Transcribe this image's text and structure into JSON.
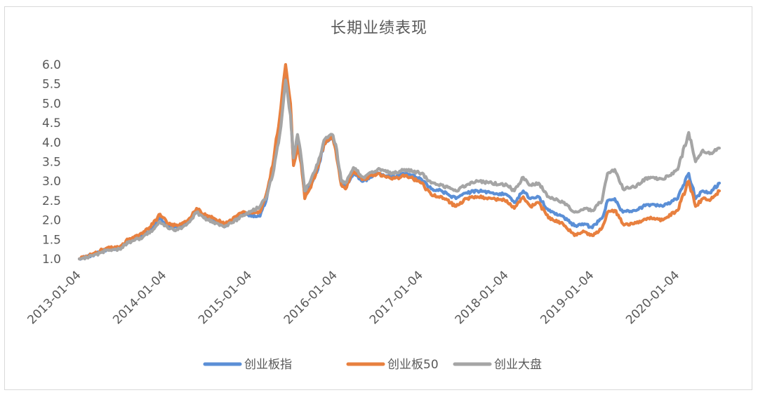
{
  "chart_data": {
    "type": "line",
    "title": "长期业绩表现",
    "xlabel": "",
    "ylabel": "",
    "ylim": [
      1.0,
      6.0
    ],
    "yticks": [
      "1.0",
      "1.5",
      "2.0",
      "2.5",
      "3.0",
      "3.5",
      "4.0",
      "4.5",
      "5.0",
      "5.5",
      "6.0"
    ],
    "xticks": [
      "2013-01-04",
      "2014-01-04",
      "2015-01-04",
      "2016-01-04",
      "2017-01-04",
      "2018-01-04",
      "2019-01-04",
      "2020-01-04"
    ],
    "xlim": [
      "2013-01-04",
      "2020-06-30"
    ],
    "grid": false,
    "legend": "bottom",
    "series": [
      {
        "name": "创业板指",
        "color": "#5b8fd6",
        "points": [
          [
            "2013-01-04",
            1.0
          ],
          [
            "2013-03-01",
            1.1
          ],
          [
            "2013-05-01",
            1.25
          ],
          [
            "2013-06-25",
            1.28
          ],
          [
            "2013-08-01",
            1.45
          ],
          [
            "2013-10-01",
            1.6
          ],
          [
            "2013-11-15",
            1.8
          ],
          [
            "2013-12-15",
            2.05
          ],
          [
            "2014-01-20",
            1.85
          ],
          [
            "2014-03-01",
            1.8
          ],
          [
            "2014-04-20",
            2.0
          ],
          [
            "2014-05-20",
            2.25
          ],
          [
            "2014-06-20",
            2.1
          ],
          [
            "2014-08-01",
            2.0
          ],
          [
            "2014-09-15",
            1.85
          ],
          [
            "2014-10-15",
            1.95
          ],
          [
            "2014-12-01",
            2.15
          ],
          [
            "2015-01-04",
            2.12
          ],
          [
            "2015-02-15",
            2.1
          ],
          [
            "2015-03-15",
            2.55
          ],
          [
            "2015-04-15",
            3.4
          ],
          [
            "2015-05-15",
            4.6
          ],
          [
            "2015-06-04",
            5.8
          ],
          [
            "2015-06-25",
            4.8
          ],
          [
            "2015-07-08",
            3.5
          ],
          [
            "2015-07-25",
            4.0
          ],
          [
            "2015-08-10",
            3.5
          ],
          [
            "2015-08-25",
            2.65
          ],
          [
            "2015-09-15",
            2.85
          ],
          [
            "2015-10-20",
            3.3
          ],
          [
            "2015-11-15",
            3.95
          ],
          [
            "2015-12-20",
            4.15
          ],
          [
            "2016-01-04",
            3.9
          ],
          [
            "2016-01-28",
            2.95
          ],
          [
            "2016-02-15",
            2.85
          ],
          [
            "2016-03-20",
            3.2
          ],
          [
            "2016-05-01",
            3.0
          ],
          [
            "2016-07-01",
            3.2
          ],
          [
            "2016-09-01",
            3.1
          ],
          [
            "2016-11-01",
            3.2
          ],
          [
            "2017-01-04",
            3.05
          ],
          [
            "2017-02-15",
            2.8
          ],
          [
            "2017-04-01",
            2.75
          ],
          [
            "2017-06-01",
            2.55
          ],
          [
            "2017-07-15",
            2.7
          ],
          [
            "2017-09-01",
            2.75
          ],
          [
            "2017-11-01",
            2.7
          ],
          [
            "2018-01-04",
            2.65
          ],
          [
            "2018-02-05",
            2.45
          ],
          [
            "2018-03-15",
            2.75
          ],
          [
            "2018-04-15",
            2.55
          ],
          [
            "2018-05-20",
            2.6
          ],
          [
            "2018-07-01",
            2.25
          ],
          [
            "2018-09-01",
            2.1
          ],
          [
            "2018-10-20",
            1.85
          ],
          [
            "2018-12-01",
            1.9
          ],
          [
            "2019-01-04",
            1.8
          ],
          [
            "2019-02-15",
            2.05
          ],
          [
            "2019-03-10",
            2.5
          ],
          [
            "2019-04-10",
            2.55
          ],
          [
            "2019-05-15",
            2.2
          ],
          [
            "2019-07-01",
            2.25
          ],
          [
            "2019-09-01",
            2.4
          ],
          [
            "2019-11-01",
            2.35
          ],
          [
            "2020-01-04",
            2.55
          ],
          [
            "2020-02-20",
            3.2
          ],
          [
            "2020-03-20",
            2.55
          ],
          [
            "2020-04-20",
            2.75
          ],
          [
            "2020-05-20",
            2.7
          ],
          [
            "2020-06-30",
            2.95
          ]
        ]
      },
      {
        "name": "创业板50",
        "color": "#e8803f",
        "points": [
          [
            "2013-01-04",
            1.0
          ],
          [
            "2013-03-01",
            1.12
          ],
          [
            "2013-05-01",
            1.28
          ],
          [
            "2013-06-25",
            1.3
          ],
          [
            "2013-08-01",
            1.5
          ],
          [
            "2013-10-01",
            1.65
          ],
          [
            "2013-11-15",
            1.9
          ],
          [
            "2013-12-15",
            2.15
          ],
          [
            "2014-01-20",
            1.9
          ],
          [
            "2014-03-01",
            1.85
          ],
          [
            "2014-04-20",
            2.05
          ],
          [
            "2014-05-20",
            2.3
          ],
          [
            "2014-06-20",
            2.15
          ],
          [
            "2014-08-01",
            2.05
          ],
          [
            "2014-09-15",
            1.9
          ],
          [
            "2014-10-15",
            2.0
          ],
          [
            "2014-12-01",
            2.2
          ],
          [
            "2015-01-04",
            2.18
          ],
          [
            "2015-02-15",
            2.2
          ],
          [
            "2015-03-15",
            2.7
          ],
          [
            "2015-04-15",
            3.6
          ],
          [
            "2015-05-15",
            4.9
          ],
          [
            "2015-06-04",
            6.0
          ],
          [
            "2015-06-25",
            5.0
          ],
          [
            "2015-07-08",
            3.4
          ],
          [
            "2015-07-25",
            3.9
          ],
          [
            "2015-08-10",
            3.45
          ],
          [
            "2015-08-25",
            2.55
          ],
          [
            "2015-09-15",
            2.8
          ],
          [
            "2015-10-20",
            3.35
          ],
          [
            "2015-11-15",
            3.95
          ],
          [
            "2015-12-20",
            4.15
          ],
          [
            "2016-01-04",
            3.8
          ],
          [
            "2016-01-28",
            2.9
          ],
          [
            "2016-02-15",
            2.8
          ],
          [
            "2016-03-20",
            3.25
          ],
          [
            "2016-05-01",
            3.05
          ],
          [
            "2016-07-01",
            3.2
          ],
          [
            "2016-09-01",
            3.05
          ],
          [
            "2016-11-01",
            3.15
          ],
          [
            "2017-01-04",
            2.95
          ],
          [
            "2017-02-15",
            2.65
          ],
          [
            "2017-04-01",
            2.6
          ],
          [
            "2017-06-01",
            2.35
          ],
          [
            "2017-07-15",
            2.55
          ],
          [
            "2017-09-01",
            2.6
          ],
          [
            "2017-11-01",
            2.55
          ],
          [
            "2018-01-04",
            2.5
          ],
          [
            "2018-02-05",
            2.3
          ],
          [
            "2018-03-15",
            2.6
          ],
          [
            "2018-04-15",
            2.35
          ],
          [
            "2018-05-20",
            2.45
          ],
          [
            "2018-07-01",
            2.05
          ],
          [
            "2018-09-01",
            1.9
          ],
          [
            "2018-10-20",
            1.6
          ],
          [
            "2018-12-01",
            1.7
          ],
          [
            "2019-01-04",
            1.6
          ],
          [
            "2019-02-15",
            1.8
          ],
          [
            "2019-03-10",
            2.2
          ],
          [
            "2019-04-10",
            2.25
          ],
          [
            "2019-05-15",
            1.9
          ],
          [
            "2019-07-01",
            1.9
          ],
          [
            "2019-09-01",
            2.05
          ],
          [
            "2019-11-01",
            2.0
          ],
          [
            "2020-01-04",
            2.25
          ],
          [
            "2020-02-20",
            3.0
          ],
          [
            "2020-03-20",
            2.35
          ],
          [
            "2020-04-20",
            2.55
          ],
          [
            "2020-05-20",
            2.5
          ],
          [
            "2020-06-30",
            2.75
          ]
        ]
      },
      {
        "name": "创业大盘",
        "color": "#a5a5a5",
        "points": [
          [
            "2013-01-04",
            1.0
          ],
          [
            "2013-03-01",
            1.08
          ],
          [
            "2013-05-01",
            1.22
          ],
          [
            "2013-06-25",
            1.25
          ],
          [
            "2013-08-01",
            1.42
          ],
          [
            "2013-10-01",
            1.55
          ],
          [
            "2013-11-15",
            1.75
          ],
          [
            "2013-12-15",
            1.95
          ],
          [
            "2014-01-20",
            1.78
          ],
          [
            "2014-03-01",
            1.75
          ],
          [
            "2014-04-20",
            1.95
          ],
          [
            "2014-05-20",
            2.2
          ],
          [
            "2014-06-20",
            2.05
          ],
          [
            "2014-08-01",
            1.95
          ],
          [
            "2014-09-15",
            1.82
          ],
          [
            "2014-10-15",
            1.92
          ],
          [
            "2014-12-01",
            2.1
          ],
          [
            "2015-01-04",
            2.2
          ],
          [
            "2015-02-15",
            2.35
          ],
          [
            "2015-03-15",
            2.6
          ],
          [
            "2015-04-15",
            3.3
          ],
          [
            "2015-05-15",
            4.4
          ],
          [
            "2015-06-04",
            5.6
          ],
          [
            "2015-06-25",
            4.7
          ],
          [
            "2015-07-08",
            3.6
          ],
          [
            "2015-07-25",
            4.2
          ],
          [
            "2015-08-10",
            3.6
          ],
          [
            "2015-08-25",
            2.75
          ],
          [
            "2015-09-15",
            2.95
          ],
          [
            "2015-10-20",
            3.45
          ],
          [
            "2015-11-15",
            4.05
          ],
          [
            "2015-12-20",
            4.2
          ],
          [
            "2016-01-04",
            3.95
          ],
          [
            "2016-01-28",
            3.0
          ],
          [
            "2016-02-15",
            2.95
          ],
          [
            "2016-03-20",
            3.35
          ],
          [
            "2016-05-01",
            3.1
          ],
          [
            "2016-07-01",
            3.3
          ],
          [
            "2016-09-01",
            3.2
          ],
          [
            "2016-11-01",
            3.3
          ],
          [
            "2017-01-04",
            3.2
          ],
          [
            "2017-02-15",
            2.95
          ],
          [
            "2017-04-01",
            2.9
          ],
          [
            "2017-06-01",
            2.75
          ],
          [
            "2017-07-15",
            2.9
          ],
          [
            "2017-09-01",
            3.0
          ],
          [
            "2017-11-01",
            2.95
          ],
          [
            "2018-01-04",
            2.9
          ],
          [
            "2018-02-05",
            2.75
          ],
          [
            "2018-03-15",
            3.1
          ],
          [
            "2018-04-15",
            2.9
          ],
          [
            "2018-05-20",
            2.95
          ],
          [
            "2018-07-01",
            2.6
          ],
          [
            "2018-09-01",
            2.45
          ],
          [
            "2018-10-20",
            2.2
          ],
          [
            "2018-12-01",
            2.3
          ],
          [
            "2019-01-04",
            2.25
          ],
          [
            "2019-02-15",
            2.5
          ],
          [
            "2019-03-10",
            3.2
          ],
          [
            "2019-04-10",
            3.3
          ],
          [
            "2019-05-15",
            2.8
          ],
          [
            "2019-07-01",
            2.85
          ],
          [
            "2019-09-01",
            3.1
          ],
          [
            "2019-11-01",
            3.05
          ],
          [
            "2020-01-04",
            3.3
          ],
          [
            "2020-02-20",
            4.25
          ],
          [
            "2020-03-20",
            3.5
          ],
          [
            "2020-04-20",
            3.8
          ],
          [
            "2020-05-20",
            3.7
          ],
          [
            "2020-06-30",
            3.85
          ]
        ]
      }
    ]
  }
}
